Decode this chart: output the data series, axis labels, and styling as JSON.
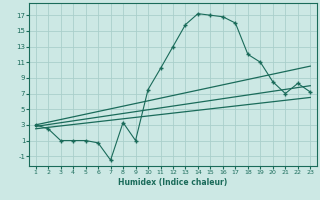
{
  "xlabel": "Humidex (Indice chaleur)",
  "bg_color": "#cce8e4",
  "line_color": "#1a6b5a",
  "grid_color": "#aacfcb",
  "x_ticks": [
    1,
    2,
    3,
    4,
    5,
    6,
    7,
    8,
    9,
    10,
    11,
    12,
    13,
    14,
    15,
    16,
    17,
    18,
    19,
    20,
    21,
    22,
    23
  ],
  "y_ticks": [
    -1,
    1,
    3,
    5,
    7,
    9,
    11,
    13,
    15,
    17
  ],
  "ylim": [
    -2.2,
    18.5
  ],
  "xlim": [
    0.5,
    23.5
  ],
  "line1_x": [
    1,
    2,
    3,
    4,
    5,
    6,
    7,
    8,
    9,
    10,
    11,
    12,
    13,
    14,
    15,
    16,
    17,
    18,
    19,
    20,
    21,
    22,
    23
  ],
  "line1_y": [
    3.0,
    2.5,
    1.0,
    1.0,
    1.0,
    0.7,
    -1.5,
    3.3,
    1.0,
    7.5,
    10.2,
    13.0,
    15.8,
    17.2,
    17.0,
    16.8,
    16.0,
    12.0,
    11.0,
    8.5,
    7.0,
    8.3,
    7.2
  ],
  "line2_x": [
    1,
    23
  ],
  "line2_y": [
    3.0,
    10.5
  ],
  "line3_x": [
    1,
    23
  ],
  "line3_y": [
    2.8,
    8.0
  ],
  "line4_x": [
    1,
    23
  ],
  "line4_y": [
    2.5,
    6.5
  ]
}
